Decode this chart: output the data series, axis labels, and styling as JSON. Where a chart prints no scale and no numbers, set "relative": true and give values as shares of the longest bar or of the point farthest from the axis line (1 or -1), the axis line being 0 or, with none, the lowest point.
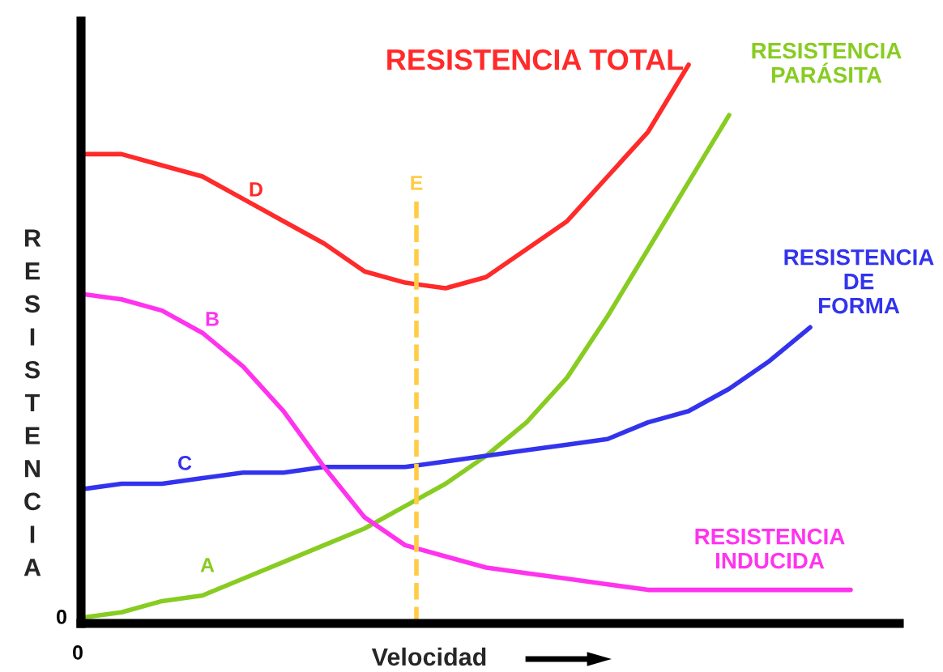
{
  "chart_data": {
    "type": "line",
    "relative": true,
    "xlabel": "Velocidad",
    "ylabel": "RESISTENCIA",
    "categories": [
      null,
      null,
      null,
      null,
      null,
      null,
      null,
      null,
      null,
      null,
      null,
      null,
      null,
      null,
      null,
      null,
      null,
      null,
      null,
      null
    ],
    "series": [
      {
        "name": "RESISTENCIA TOTAL",
        "color": "#ff2a2a",
        "values": [
          0.84,
          0.84,
          0.82,
          0.8,
          0.76,
          0.72,
          0.68,
          0.63,
          0.61,
          0.6,
          0.62,
          0.67,
          0.72,
          0.8,
          0.88,
          1,
          null,
          null,
          null,
          null
        ]
      },
      {
        "name": "RESISTENCIA PARÁSITA",
        "color": "#88cc22",
        "values": [
          0.01,
          0.02,
          0.04,
          0.05,
          0.08,
          0.11,
          0.14,
          0.17,
          0.21,
          0.25,
          0.3,
          0.36,
          0.44,
          0.55,
          0.67,
          0.79,
          0.91,
          null,
          null,
          null
        ]
      },
      {
        "name": "RESISTENCIA DE FORMA",
        "color": "#3333ee",
        "values": [
          0.24,
          0.25,
          0.25,
          0.26,
          0.27,
          0.27,
          0.28,
          0.28,
          0.28,
          0.29,
          0.3,
          0.31,
          0.32,
          0.33,
          0.36,
          0.38,
          0.42,
          0.47,
          0.53,
          null
        ]
      },
      {
        "name": "RESISTENCIA INDUCIDA",
        "color": "#ff33ee",
        "values": [
          0.59,
          0.58,
          0.56,
          0.52,
          0.46,
          0.38,
          0.28,
          0.19,
          0.14,
          0.12,
          0.1,
          0.09,
          0.08,
          0.07,
          0.06,
          0.06,
          0.06,
          0.06,
          0.06,
          0.06
        ]
      }
    ],
    "annotations": [
      "D",
      "B",
      "C",
      "A",
      "0",
      "0",
      "E"
    ],
    "line_style": "solid",
    "marker": "none",
    "legend": false
  }
}
